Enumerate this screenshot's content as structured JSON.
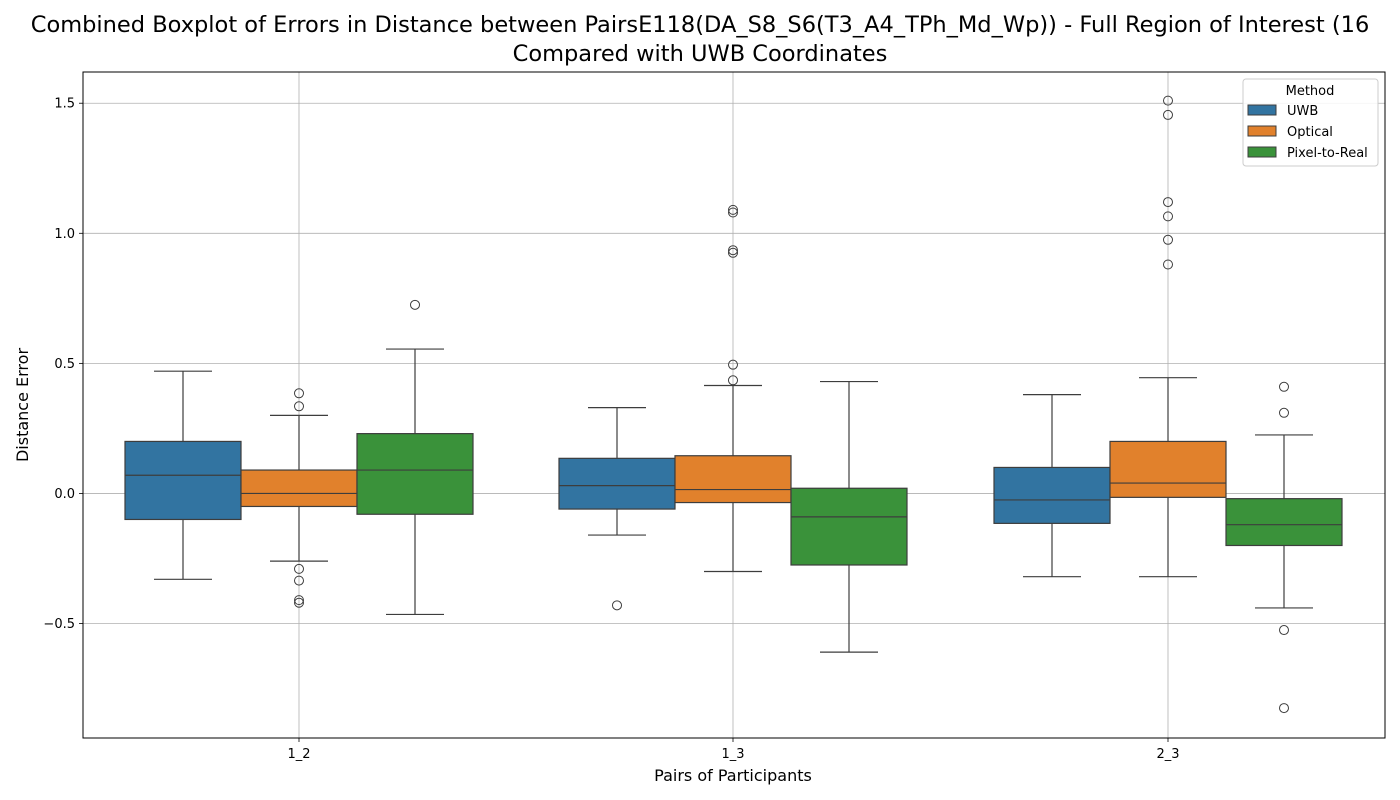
{
  "chart_data": {
    "type": "boxplot",
    "title_lines": [
      "Combined Boxplot of Errors in Distance between PairsE118(DA_S8_S6(T3_A4_TPh_Md_Wp)) - Full Region of Interest (16",
      "Compared with UWB Coordinates"
    ],
    "xlabel": "Pairs of Participants",
    "ylabel": "Distance Error",
    "categories": [
      "1_2",
      "1_3",
      "2_3"
    ],
    "ylim": [
      -0.94,
      1.62
    ],
    "yticks": [
      -0.5,
      0.0,
      0.5,
      1.0,
      1.5
    ],
    "ytick_labels": [
      "−0.5",
      "0.0",
      "0.5",
      "1.0",
      "1.5"
    ],
    "grid": true,
    "legend": {
      "title": "Method",
      "placement": "top-right"
    },
    "series": [
      {
        "name": "UWB",
        "color": "#3274a1",
        "boxes": [
          {
            "whisker_low": -0.33,
            "q1": -0.1,
            "median": 0.07,
            "q3": 0.2,
            "whisker_high": 0.47,
            "outliers": []
          },
          {
            "whisker_low": -0.16,
            "q1": -0.06,
            "median": 0.03,
            "q3": 0.135,
            "whisker_high": 0.33,
            "outliers": [
              -0.43
            ]
          },
          {
            "whisker_low": -0.32,
            "q1": -0.115,
            "median": -0.025,
            "q3": 0.1,
            "whisker_high": 0.38,
            "outliers": []
          }
        ]
      },
      {
        "name": "Optical",
        "color": "#e1812c",
        "boxes": [
          {
            "whisker_low": -0.26,
            "q1": -0.05,
            "median": 0.0,
            "q3": 0.09,
            "whisker_high": 0.3,
            "outliers": [
              0.385,
              0.335,
              -0.29,
              -0.335,
              -0.41,
              -0.42
            ]
          },
          {
            "whisker_low": -0.3,
            "q1": -0.035,
            "median": 0.015,
            "q3": 0.145,
            "whisker_high": 0.415,
            "outliers": [
              1.09,
              1.08,
              0.935,
              0.925,
              0.495,
              0.435
            ]
          },
          {
            "whisker_low": -0.32,
            "q1": -0.015,
            "median": 0.04,
            "q3": 0.2,
            "whisker_high": 0.445,
            "outliers": [
              1.51,
              1.455,
              1.12,
              1.065,
              0.975,
              0.88
            ]
          }
        ]
      },
      {
        "name": "Pixel-to-Real",
        "color": "#3a923a",
        "boxes": [
          {
            "whisker_low": -0.465,
            "q1": -0.08,
            "median": 0.09,
            "q3": 0.23,
            "whisker_high": 0.555,
            "outliers": [
              0.725
            ]
          },
          {
            "whisker_low": -0.61,
            "q1": -0.275,
            "median": -0.09,
            "q3": 0.02,
            "whisker_high": 0.43,
            "outliers": []
          },
          {
            "whisker_low": -0.44,
            "q1": -0.2,
            "median": -0.12,
            "q3": -0.02,
            "whisker_high": 0.225,
            "outliers": [
              0.41,
              0.31,
              -0.525,
              -0.825
            ]
          }
        ]
      }
    ]
  }
}
